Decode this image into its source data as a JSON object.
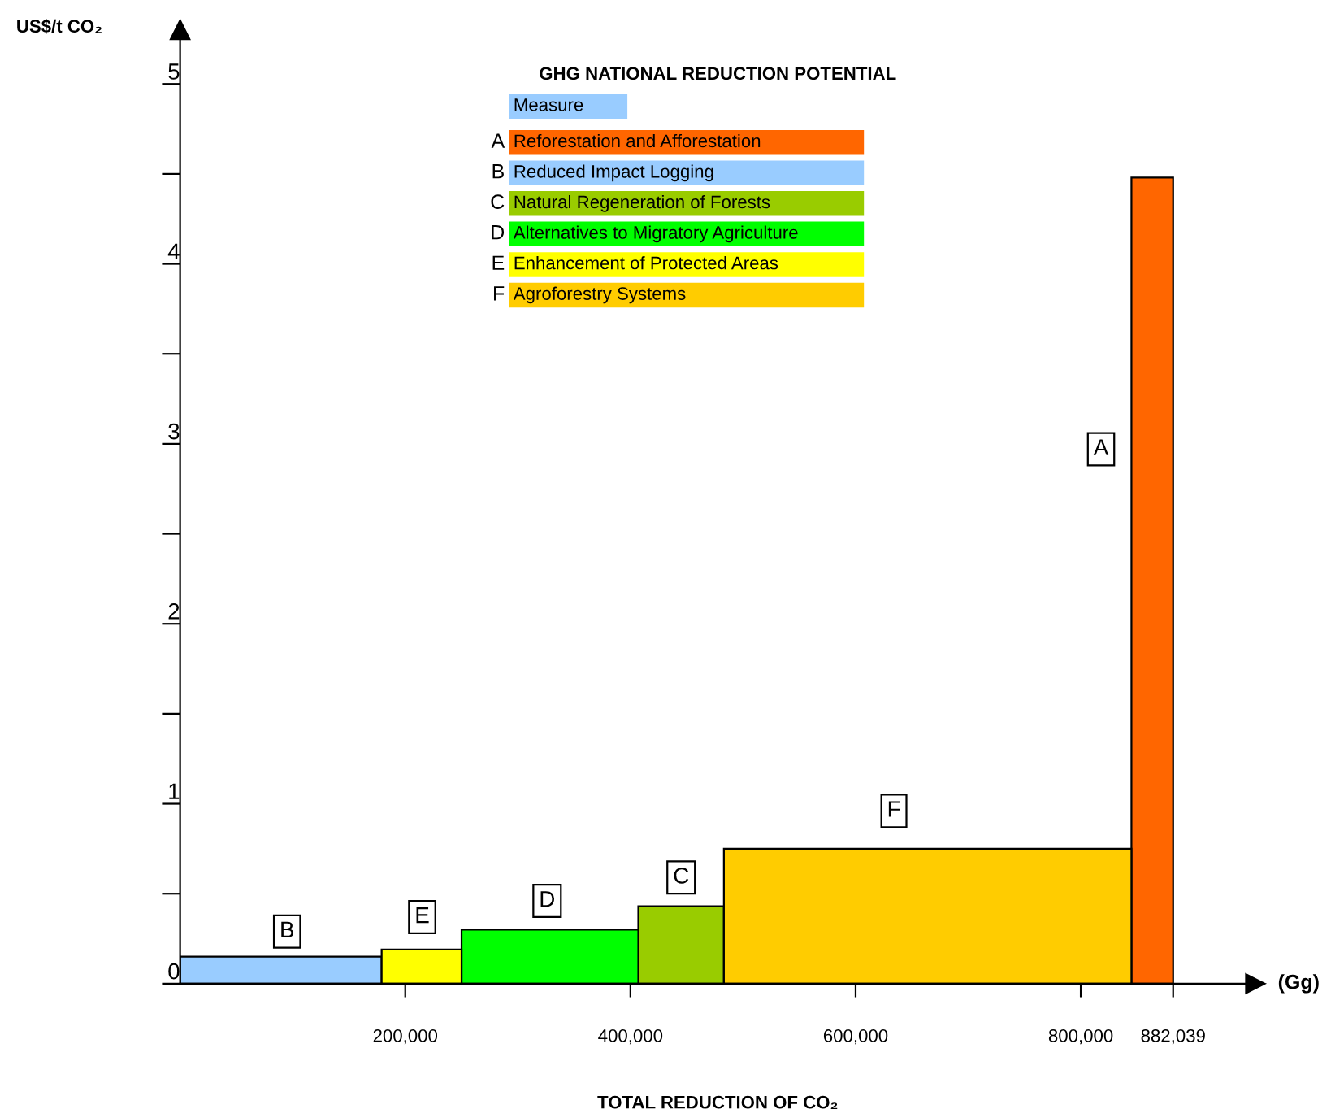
{
  "chart_data": {
    "type": "histogram",
    "title": "GHG NATIONAL REDUCTION POTENTIAL",
    "xlabel": "TOTAL REDUCTION OF CO₂",
    "ylabel": "US$/t CO₂",
    "legend_title": "Measure",
    "bins": [
      0,
      179000,
      250000,
      407000,
      483000,
      845000,
      882039
    ],
    "series": [
      {
        "name": "A Reforestation and Afforestation",
        "color": "#ff6600",
        "values": [
          null,
          null,
          null,
          null,
          null,
          4.48
        ]
      },
      {
        "name": "B Reduced Impact Logging",
        "color": "#99ccff",
        "values": [
          0.15,
          null,
          null,
          null,
          null,
          null
        ]
      },
      {
        "name": "C Natural Regeneration of Forests",
        "color": "#99cc00",
        "values": [
          null,
          null,
          null,
          0.43,
          null,
          null
        ]
      },
      {
        "name": "D Alternatives to Migratory Agriculture",
        "color": "#00ff00",
        "values": [
          null,
          null,
          0.3,
          null,
          null,
          null
        ]
      },
      {
        "name": "E Enhancement of Protected Areas",
        "color": "#ffff00",
        "values": [
          null,
          0.19,
          null,
          null,
          null,
          null
        ]
      },
      {
        "name": "F Agroforestry Systems",
        "color": "#ffcc00",
        "values": [
          null,
          null,
          null,
          null,
          0.75,
          null
        ]
      }
    ],
    "annotations": [
      {
        "text": "B",
        "x": 95000,
        "y": 0.29
      },
      {
        "text": "E",
        "x": 215000,
        "y": 0.37
      },
      {
        "text": "D",
        "x": 326000,
        "y": 0.46
      },
      {
        "text": "C",
        "x": 445000,
        "y": 0.59
      },
      {
        "text": "F",
        "x": 634000,
        "y": 0.96
      },
      {
        "text": "A",
        "x": 818000,
        "y": 2.97
      },
      "(Gg)"
    ],
    "xlim": [
      0,
      955000
    ],
    "ylim": [
      0,
      5.3
    ],
    "xticks": [
      {
        "value": 200000,
        "label": "200,000"
      },
      {
        "value": 400000,
        "label": "400,000"
      },
      {
        "value": 600000,
        "label": "600,000"
      },
      {
        "value": 800000,
        "label": "800,000"
      },
      {
        "value": 882039,
        "label": "882,039"
      }
    ],
    "yticks": [
      0,
      {
        "value": 0.5,
        "label": null
      },
      1,
      {
        "value": 1.5,
        "label": null
      },
      2,
      {
        "value": 2.5,
        "label": null
      },
      3,
      {
        "value": 3.5,
        "label": null
      },
      4,
      {
        "value": 4.5,
        "label": null
      },
      5
    ],
    "legend": "top",
    "grid": false
  }
}
